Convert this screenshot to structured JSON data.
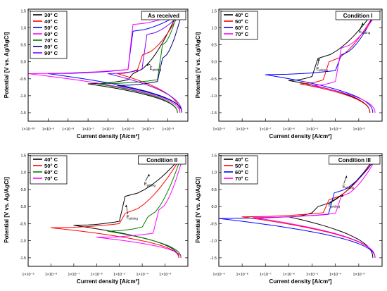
{
  "chart_data": [
    {
      "type": "line",
      "title": "As received",
      "xlabel": "Current density [A/cm²]",
      "ylabel": "Potential [V vs. Ag/AgCl]",
      "xscale": "log",
      "xlim": [
        1e-10,
        0.01
      ],
      "ylim": [
        -1.75,
        1.55
      ],
      "xtick_exponents": [
        -10,
        -9,
        -8,
        -7,
        -6,
        -5,
        -4,
        -3
      ],
      "yticks": [
        "-1.5",
        "-1.0",
        "-0.5",
        "0.0",
        "0.5",
        "1.0",
        "1.5"
      ],
      "legend_position": "top-left",
      "annotations": [
        {
          "base": "E",
          "sub": "pitting",
          "at": [
            0.0001,
            -0.05
          ],
          "text_at": [
            0.00012,
            -0.23
          ]
        }
      ],
      "series": [
        {
          "name": "30° C",
          "color": "#000000",
          "ecorr": -0.65,
          "icorr": 1e-07,
          "break": -0.35,
          "i_pass": 1e-05,
          "i_max": 0.003,
          "i_cat": 0.003
        },
        {
          "name": "40° C",
          "color": "#ff0000",
          "ecorr": -0.35,
          "icorr": 3e-06,
          "break": 0.2,
          "i_pass": 3e-05,
          "i_max": 0.004,
          "i_cat": 0.004
        },
        {
          "name": "50° C",
          "color": "#0000ff",
          "ecorr": -0.35,
          "icorr": 1e-09,
          "break": 0.9,
          "i_pass": 1e-05,
          "i_max": 0.005,
          "i_cat": 0.005
        },
        {
          "name": "60° C",
          "color": "#ff00ff",
          "ecorr": -0.35,
          "icorr": 1e-10,
          "break": 1.1,
          "i_pass": 1e-05,
          "i_max": 0.004,
          "i_cat": 0.004
        },
        {
          "name": "70° C",
          "color": "#008000",
          "ecorr": -0.65,
          "icorr": 3e-07,
          "break": 0.5,
          "i_pass": 0.0003,
          "i_max": 0.003,
          "i_cat": 0.003
        },
        {
          "name": "80° C",
          "color": "#000080",
          "ecorr": -0.7,
          "icorr": 3e-06,
          "break": 0.1,
          "i_pass": 0.0003,
          "i_max": 0.005,
          "i_cat": 0.005
        },
        {
          "name": "90° C",
          "color": "#8000ff",
          "ecorr": -0.35,
          "icorr": 1e-06,
          "break": 0.8,
          "i_pass": 5e-05,
          "i_max": 0.005,
          "i_cat": 0.005
        }
      ]
    },
    {
      "type": "line",
      "title": "Condition I",
      "xlabel": "Current density [A/cm²]",
      "ylabel": "Potential [V vs. Ag/AgCl]",
      "xscale": "log",
      "xlim": [
        1e-09,
        0.01
      ],
      "ylim": [
        -1.75,
        1.55
      ],
      "xtick_exponents": [
        -9,
        -8,
        -7,
        -6,
        -5,
        -4,
        -3
      ],
      "yticks": [
        "-1.5",
        "-1.0",
        "-0.5",
        "0.0",
        "0.5",
        "1.0",
        "1.5"
      ],
      "legend_position": "top-left",
      "annotations": [
        {
          "base": "E",
          "sub": "pitting",
          "at": [
            0.0015,
            1.15
          ],
          "text_at": [
            0.001,
            0.85
          ]
        },
        {
          "base": "E",
          "sub": "pitting",
          "at": [
            2e-05,
            0.1
          ],
          "text_at": [
            1.5e-05,
            -0.25
          ]
        }
      ],
      "series": [
        {
          "name": "40° C",
          "color": "#000000",
          "ecorr": -0.55,
          "icorr": 1e-06,
          "break": 0.1,
          "i_pass": 1e-05,
          "i_max": 0.004,
          "i_cat": 0.003
        },
        {
          "name": "50° C",
          "color": "#ff0000",
          "ecorr": -0.65,
          "icorr": 3e-06,
          "break": 0.0,
          "i_pass": 3e-05,
          "i_max": 0.005,
          "i_cat": 0.003
        },
        {
          "name": "60° C",
          "color": "#0000ff",
          "ecorr": -0.38,
          "icorr": 1e-07,
          "break": 0.2,
          "i_pass": 0.0001,
          "i_max": 0.005,
          "i_cat": 0.004
        },
        {
          "name": "70° C",
          "color": "#ff00ff",
          "ecorr": -0.7,
          "icorr": 1e-05,
          "break": 0.4,
          "i_pass": 0.0001,
          "i_max": 0.006,
          "i_cat": 0.005
        }
      ]
    },
    {
      "type": "line",
      "title": "Condition II",
      "xlabel": "Current density [A/cm²]",
      "ylabel": "Potential [V vs. Ag/AgCl]",
      "xscale": "log",
      "xlim": [
        1e-09,
        0.01
      ],
      "ylim": [
        -1.75,
        1.55
      ],
      "xtick_exponents": [
        -9,
        -8,
        -7,
        -6,
        -5,
        -4,
        -3
      ],
      "yticks": [
        "-1.5",
        "-1.0",
        "-0.5",
        "0.0",
        "0.5",
        "1.0",
        "1.5"
      ],
      "legend_position": "top-left",
      "annotations": [
        {
          "base": "E",
          "sub": "pitting",
          "at": [
            0.0002,
            0.95
          ],
          "text_at": [
            0.00012,
            0.62
          ]
        },
        {
          "base": "E",
          "sub": "pitting",
          "at": [
            2e-05,
            0.05
          ],
          "text_at": [
            2e-05,
            -0.35
          ]
        }
      ],
      "series": [
        {
          "name": "40° C",
          "color": "#000000",
          "ecorr": -0.55,
          "icorr": 1e-07,
          "break": 0.3,
          "i_pass": 1e-05,
          "i_max": 0.005,
          "i_cat": 0.004
        },
        {
          "name": "50° C",
          "color": "#ff0000",
          "ecorr": -0.62,
          "icorr": 1e-08,
          "break": -0.2,
          "i_pass": 1e-05,
          "i_max": 0.005,
          "i_cat": 0.004
        },
        {
          "name": "60° C",
          "color": "#008000",
          "ecorr": -0.72,
          "icorr": 3e-06,
          "break": -0.3,
          "i_pass": 0.0001,
          "i_max": 0.005,
          "i_cat": 0.005
        },
        {
          "name": "70° C",
          "color": "#ff00ff",
          "ecorr": -0.9,
          "icorr": 1e-06,
          "break": -0.1,
          "i_pass": 0.0003,
          "i_max": 0.006,
          "i_cat": 0.005
        }
      ]
    },
    {
      "type": "line",
      "title": "Condition III",
      "xlabel": "Current density [A/cm²]",
      "ylabel": "Potential [V vs. Ag/AgCl]",
      "xscale": "log",
      "xlim": [
        1e-09,
        0.01
      ],
      "ylim": [
        -1.75,
        1.55
      ],
      "xtick_exponents": [
        -9,
        -8,
        -7,
        -6,
        -5,
        -4,
        -3
      ],
      "yticks": [
        "-1.5",
        "-1.0",
        "-0.5",
        "0.0",
        "0.5",
        "1.0",
        "1.5"
      ],
      "legend_position": "top-left",
      "annotations": [
        {
          "base": "E",
          "sub": "pitting",
          "at": [
            0.0003,
            0.9
          ],
          "text_at": [
            0.0002,
            0.55
          ]
        },
        {
          "base": "E",
          "sub": "pitting",
          "at": [
            0.0002,
            0.35
          ],
          "text_at": [
            5e-05,
            0.0
          ]
        }
      ],
      "series": [
        {
          "name": "40° C",
          "color": "#000000",
          "ecorr": -0.3,
          "icorr": 1e-06,
          "break": 0.0,
          "i_pass": 1e-05,
          "i_max": 0.005,
          "i_cat": 0.004
        },
        {
          "name": "50° C",
          "color": "#ff0000",
          "ecorr": -0.3,
          "icorr": 1e-08,
          "break": 0.2,
          "i_pass": 3e-05,
          "i_max": 0.005,
          "i_cat": 0.005
        },
        {
          "name": "60° C",
          "color": "#0000ff",
          "ecorr": -0.35,
          "icorr": 1e-09,
          "break": 0.4,
          "i_pass": 5e-05,
          "i_max": 0.006,
          "i_cat": 0.005
        },
        {
          "name": "70° C",
          "color": "#ff00ff",
          "ecorr": -0.32,
          "icorr": 3e-08,
          "break": 0.3,
          "i_pass": 0.0001,
          "i_max": 0.006,
          "i_cat": 0.005
        }
      ]
    }
  ]
}
